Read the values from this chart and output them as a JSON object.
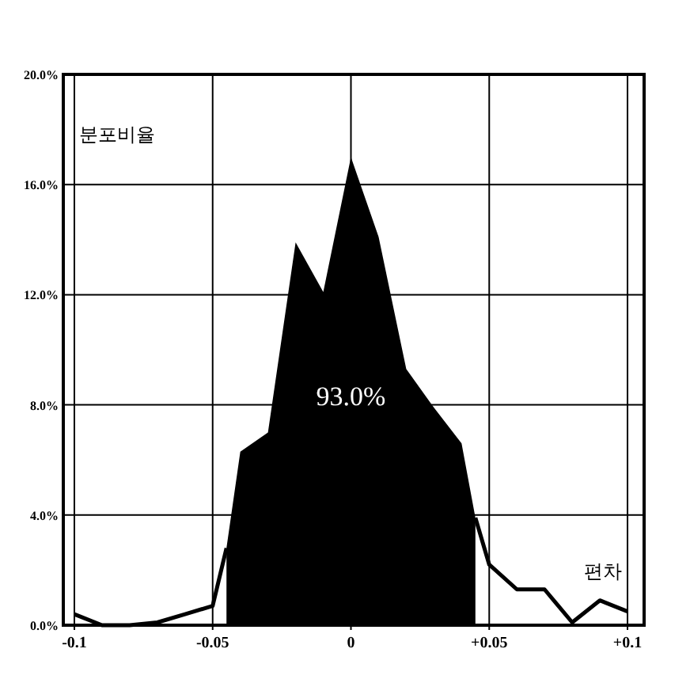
{
  "chart_data": {
    "type": "line",
    "xlabel": "편차",
    "ylabel": "분포비율",
    "series": [
      {
        "type": "area",
        "color": "#000000",
        "x": [
          -0.045,
          -0.04,
          -0.03,
          -0.02,
          -0.01,
          0,
          0.01,
          0.02,
          0.03,
          0.04,
          0.045
        ],
        "values": [
          2.8,
          6.3,
          7.0,
          13.9,
          12.1,
          17.0,
          14.1,
          9.3,
          7.9,
          6.6,
          3.9
        ]
      },
      {
        "color": "#000000",
        "x": [
          -0.1,
          -0.09,
          -0.08,
          -0.07,
          -0.06,
          -0.05,
          -0.045
        ],
        "values": [
          0.4,
          0.0,
          0.0,
          0.1,
          0.4,
          0.7,
          2.8
        ]
      },
      {
        "color": "#000000",
        "x": [
          0.045,
          0.05,
          0.06,
          0.07,
          0.08,
          0.09,
          0.1
        ],
        "values": [
          3.9,
          2.2,
          1.3,
          1.3,
          0.1,
          0.9,
          0.5
        ]
      }
    ],
    "annotations": [
      "93.0%"
    ],
    "xlim": [
      -0.104,
      0.106
    ],
    "xticks": [
      {
        "value": -0.1,
        "label": "-0.1"
      },
      {
        "value": -0.05,
        "label": "-0.05"
      },
      0,
      {
        "value": 0.05,
        "label": "+0.05"
      },
      {
        "value": 0.1,
        "label": "+0.1"
      }
    ],
    "ylim": [
      0,
      20
    ],
    "yticks": [
      {
        "value": 0,
        "label": "0.0%"
      },
      {
        "value": 4,
        "label": "4.0%"
      },
      {
        "value": 8,
        "label": "8.0%"
      },
      {
        "value": 12,
        "label": "12.0%"
      },
      {
        "value": 16,
        "label": "16.0%"
      },
      {
        "value": 20,
        "label": "20.0%"
      }
    ],
    "grid": true,
    "marker": "none",
    "line_style": "solid"
  }
}
